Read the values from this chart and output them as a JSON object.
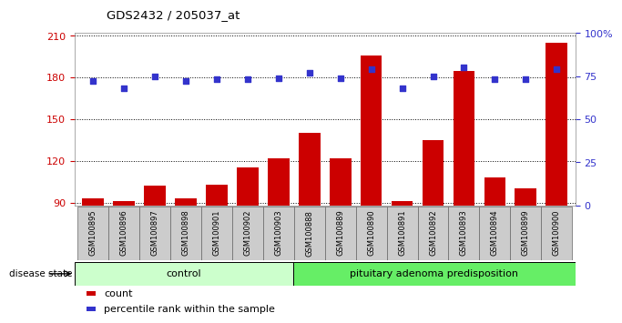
{
  "title": "GDS2432 / 205037_at",
  "samples": [
    "GSM100895",
    "GSM100896",
    "GSM100897",
    "GSM100898",
    "GSM100901",
    "GSM100902",
    "GSM100903",
    "GSM100888",
    "GSM100889",
    "GSM100890",
    "GSM100891",
    "GSM100892",
    "GSM100893",
    "GSM100894",
    "GSM100899",
    "GSM100900"
  ],
  "counts": [
    93,
    91,
    102,
    93,
    103,
    115,
    122,
    140,
    122,
    196,
    91,
    135,
    185,
    108,
    100,
    205
  ],
  "percentiles": [
    72,
    68,
    75,
    72,
    73,
    73,
    74,
    77,
    74,
    79,
    68,
    75,
    80,
    73,
    73,
    79
  ],
  "control_count": 7,
  "group1_label": "control",
  "group2_label": "pituitary adenoma predisposition",
  "ylim_left": [
    88,
    212
  ],
  "ylim_right": [
    0,
    100
  ],
  "yticks_left": [
    90,
    120,
    150,
    180,
    210
  ],
  "yticks_right": [
    0,
    25,
    50,
    75,
    100
  ],
  "ytick_labels_right": [
    "0",
    "25",
    "50",
    "75",
    "100%"
  ],
  "bar_color": "#cc0000",
  "dot_color": "#3333cc",
  "group1_bg": "#ccffcc",
  "group2_bg": "#66ee66",
  "axis_color_left": "#cc0000",
  "axis_color_right": "#3333cc",
  "disease_state_label": "disease state",
  "legend_count_label": "count",
  "legend_pct_label": "percentile rank within the sample",
  "grid_color": "black",
  "tick_label_bg": "#cccccc",
  "spine_color": "#888888"
}
